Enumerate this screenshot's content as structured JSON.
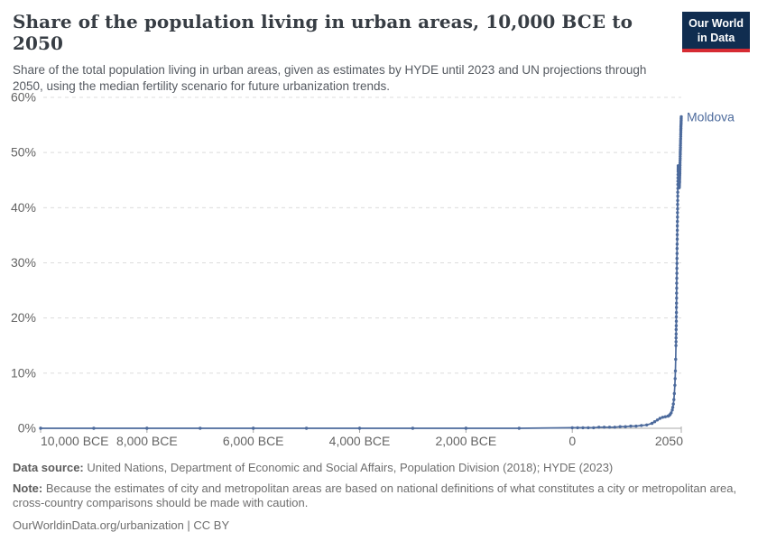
{
  "header": {
    "title": "Share of the population living in urban areas, 10,000 BCE to 2050",
    "subtitle": "Share of the total population living in urban areas, given as estimates by HYDE until 2023 and UN projections through 2050, using the median fertility scenario for future urbanization trends.",
    "logo": {
      "line1": "Our World",
      "line2": "in Data",
      "bg": "#102d50",
      "stripe": "#d62b33"
    }
  },
  "chart_data": {
    "type": "line",
    "title": "Share of the population living in urban areas, 10,000 BCE to 2050",
    "entity_label": "Moldova",
    "unit": "%",
    "xlim": [
      -10000,
      2050
    ],
    "ylim": [
      0,
      60
    ],
    "grid": "horizontal-dashed",
    "legend_position": "line-end-label",
    "yticks": [
      {
        "value": 0,
        "label": "0%"
      },
      {
        "value": 10,
        "label": "10%"
      },
      {
        "value": 20,
        "label": "20%"
      },
      {
        "value": 30,
        "label": "30%"
      },
      {
        "value": 40,
        "label": "40%"
      },
      {
        "value": 50,
        "label": "50%"
      },
      {
        "value": 60,
        "label": "60%"
      }
    ],
    "xticks": [
      {
        "year": -10000,
        "label": "10,000 BCE"
      },
      {
        "year": -8000,
        "label": "8,000 BCE"
      },
      {
        "year": -6000,
        "label": "6,000 BCE"
      },
      {
        "year": -4000,
        "label": "4,000 BCE"
      },
      {
        "year": -2000,
        "label": "2,000 BCE"
      },
      {
        "year": 0,
        "label": "0"
      },
      {
        "year": 2050,
        "label": "2050"
      }
    ],
    "series": [
      {
        "name": "Moldova",
        "color": "#4c6a9c",
        "points": [
          [
            -10000,
            0
          ],
          [
            -9000,
            0
          ],
          [
            -8000,
            0
          ],
          [
            -7000,
            0
          ],
          [
            -6000,
            0
          ],
          [
            -5000,
            0
          ],
          [
            -4000,
            0
          ],
          [
            -3000,
            0
          ],
          [
            -2000,
            0
          ],
          [
            -1000,
            0
          ],
          [
            0,
            0.1
          ],
          [
            100,
            0.1
          ],
          [
            200,
            0.1
          ],
          [
            300,
            0.1
          ],
          [
            400,
            0.1
          ],
          [
            500,
            0.2
          ],
          [
            600,
            0.2
          ],
          [
            700,
            0.2
          ],
          [
            800,
            0.2
          ],
          [
            900,
            0.3
          ],
          [
            1000,
            0.3
          ],
          [
            1100,
            0.4
          ],
          [
            1200,
            0.4
          ],
          [
            1300,
            0.5
          ],
          [
            1400,
            0.6
          ],
          [
            1500,
            0.9
          ],
          [
            1550,
            1.2
          ],
          [
            1600,
            1.5
          ],
          [
            1650,
            1.8
          ],
          [
            1700,
            2.0
          ],
          [
            1750,
            2.1
          ],
          [
            1800,
            2.2
          ],
          [
            1820,
            2.3
          ],
          [
            1840,
            2.5
          ],
          [
            1860,
            2.8
          ],
          [
            1880,
            3.3
          ],
          [
            1890,
            3.8
          ],
          [
            1900,
            4.4
          ],
          [
            1910,
            5.2
          ],
          [
            1920,
            6.3
          ],
          [
            1930,
            7.8
          ],
          [
            1935,
            9.0
          ],
          [
            1940,
            10.4
          ],
          [
            1945,
            12.5
          ],
          [
            1950,
            15.0
          ],
          [
            1951,
            15.7
          ],
          [
            1952,
            16.4
          ],
          [
            1953,
            17.1
          ],
          [
            1954,
            17.9
          ],
          [
            1955,
            18.6
          ],
          [
            1956,
            19.4
          ],
          [
            1957,
            20.2
          ],
          [
            1958,
            21.0
          ],
          [
            1959,
            21.9
          ],
          [
            1960,
            22.7
          ],
          [
            1961,
            23.6
          ],
          [
            1962,
            24.5
          ],
          [
            1963,
            25.4
          ],
          [
            1964,
            26.3
          ],
          [
            1965,
            27.2
          ],
          [
            1966,
            28.1
          ],
          [
            1967,
            29.0
          ],
          [
            1968,
            29.9
          ],
          [
            1969,
            30.8
          ],
          [
            1970,
            31.7
          ],
          [
            1971,
            32.6
          ],
          [
            1972,
            33.4
          ],
          [
            1973,
            34.3
          ],
          [
            1974,
            35.1
          ],
          [
            1975,
            35.9
          ],
          [
            1976,
            36.7
          ],
          [
            1977,
            37.5
          ],
          [
            1978,
            38.3
          ],
          [
            1979,
            39.1
          ],
          [
            1980,
            39.8
          ],
          [
            1981,
            40.6
          ],
          [
            1982,
            41.3
          ],
          [
            1983,
            42.1
          ],
          [
            1984,
            42.8
          ],
          [
            1985,
            43.5
          ],
          [
            1986,
            44.2
          ],
          [
            1987,
            44.8
          ],
          [
            1988,
            45.4
          ],
          [
            1989,
            46.0
          ],
          [
            1990,
            46.6
          ],
          [
            1991,
            47.0
          ],
          [
            1992,
            47.4
          ],
          [
            1993,
            47.6
          ],
          [
            1994,
            47.5
          ],
          [
            1995,
            47.2
          ],
          [
            1996,
            46.8
          ],
          [
            1997,
            46.4
          ],
          [
            1998,
            46.0
          ],
          [
            1999,
            45.6
          ],
          [
            2000,
            45.2
          ],
          [
            2001,
            44.9
          ],
          [
            2002,
            44.6
          ],
          [
            2003,
            44.4
          ],
          [
            2004,
            44.2
          ],
          [
            2005,
            44.0
          ],
          [
            2006,
            43.9
          ],
          [
            2007,
            43.8
          ],
          [
            2008,
            43.7
          ],
          [
            2009,
            43.7
          ],
          [
            2010,
            43.6
          ],
          [
            2011,
            43.7
          ],
          [
            2012,
            43.8
          ],
          [
            2013,
            43.9
          ],
          [
            2014,
            44.1
          ],
          [
            2015,
            44.3
          ],
          [
            2016,
            44.5
          ],
          [
            2017,
            44.7
          ],
          [
            2018,
            45.0
          ],
          [
            2019,
            45.3
          ],
          [
            2020,
            45.6
          ],
          [
            2021,
            45.9
          ],
          [
            2022,
            46.2
          ],
          [
            2023,
            46.5
          ],
          [
            2024,
            46.9
          ],
          [
            2025,
            47.3
          ],
          [
            2026,
            47.7
          ],
          [
            2027,
            48.1
          ],
          [
            2028,
            48.5
          ],
          [
            2029,
            48.9
          ],
          [
            2030,
            49.3
          ],
          [
            2031,
            49.7
          ],
          [
            2032,
            50.1
          ],
          [
            2033,
            50.5
          ],
          [
            2034,
            50.9
          ],
          [
            2035,
            51.3
          ],
          [
            2036,
            51.7
          ],
          [
            2037,
            52.1
          ],
          [
            2038,
            52.5
          ],
          [
            2039,
            52.9
          ],
          [
            2040,
            53.3
          ],
          [
            2041,
            53.7
          ],
          [
            2042,
            54.1
          ],
          [
            2043,
            54.4
          ],
          [
            2044,
            54.7
          ],
          [
            2045,
            55.0
          ],
          [
            2046,
            55.3
          ],
          [
            2047,
            55.6
          ],
          [
            2048,
            55.9
          ],
          [
            2049,
            56.2
          ],
          [
            2050,
            56.5
          ]
        ]
      }
    ],
    "colors": {
      "line": "#4c6a9c",
      "gridline": "#dcdcdc",
      "axis": "#a8a8a8",
      "tick_label": "#646464"
    }
  },
  "footer": {
    "data_source_label": "Data source:",
    "data_source_text": " United Nations, Department of Economic and Social Affairs, Population Division (2018); HYDE (2023)",
    "note_label": "Note:",
    "note_text": " Because the estimates of city and metropolitan areas are based on national definitions of what constitutes a city or metropolitan area, cross-country comparisons should be made with caution.",
    "citation": "OurWorldinData.org/urbanization | CC BY"
  }
}
